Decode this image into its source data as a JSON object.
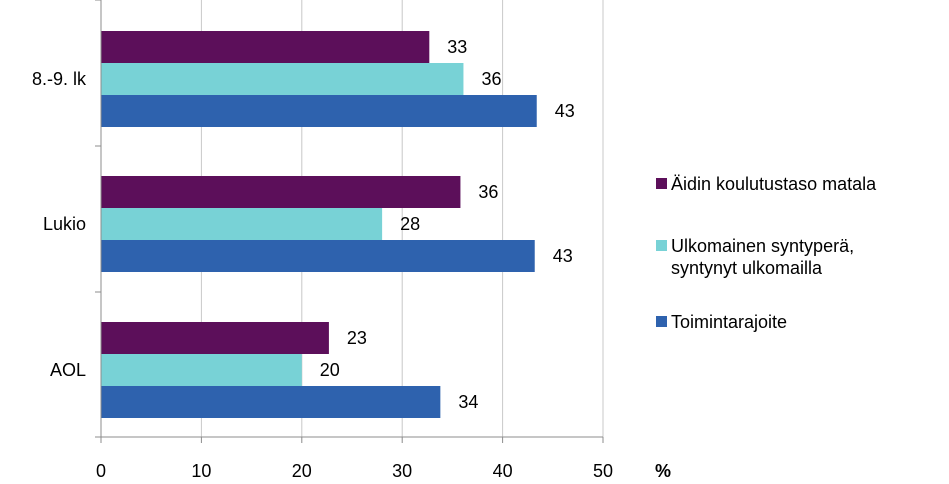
{
  "chart_data": {
    "type": "bar",
    "orientation": "horizontal",
    "categories": [
      "8.-9. lk",
      "Lukio",
      "AOL"
    ],
    "series": [
      {
        "name": "Äidin koulutustaso matala",
        "color": "#5C0F5A",
        "values": [
          33,
          36,
          23
        ],
        "value_positions": [
          32.7,
          35.8,
          22.7
        ]
      },
      {
        "name": "Ulkomainen syntyperä, syntynyt ulkomailla",
        "color": "#78D2D6",
        "values": [
          36,
          28,
          20
        ],
        "value_positions": [
          36.1,
          28.0,
          20.0
        ]
      },
      {
        "name": "Toimintarajoite",
        "color": "#2E62AE",
        "values": [
          43,
          43,
          34
        ],
        "value_positions": [
          43.4,
          43.2,
          33.8
        ]
      }
    ],
    "xlim": [
      0,
      50
    ],
    "xticks": [
      0,
      10,
      20,
      30,
      40,
      50
    ],
    "xlabel": "%",
    "ylabel": "",
    "title": "",
    "grid": "vertical",
    "legend_position": "right"
  }
}
